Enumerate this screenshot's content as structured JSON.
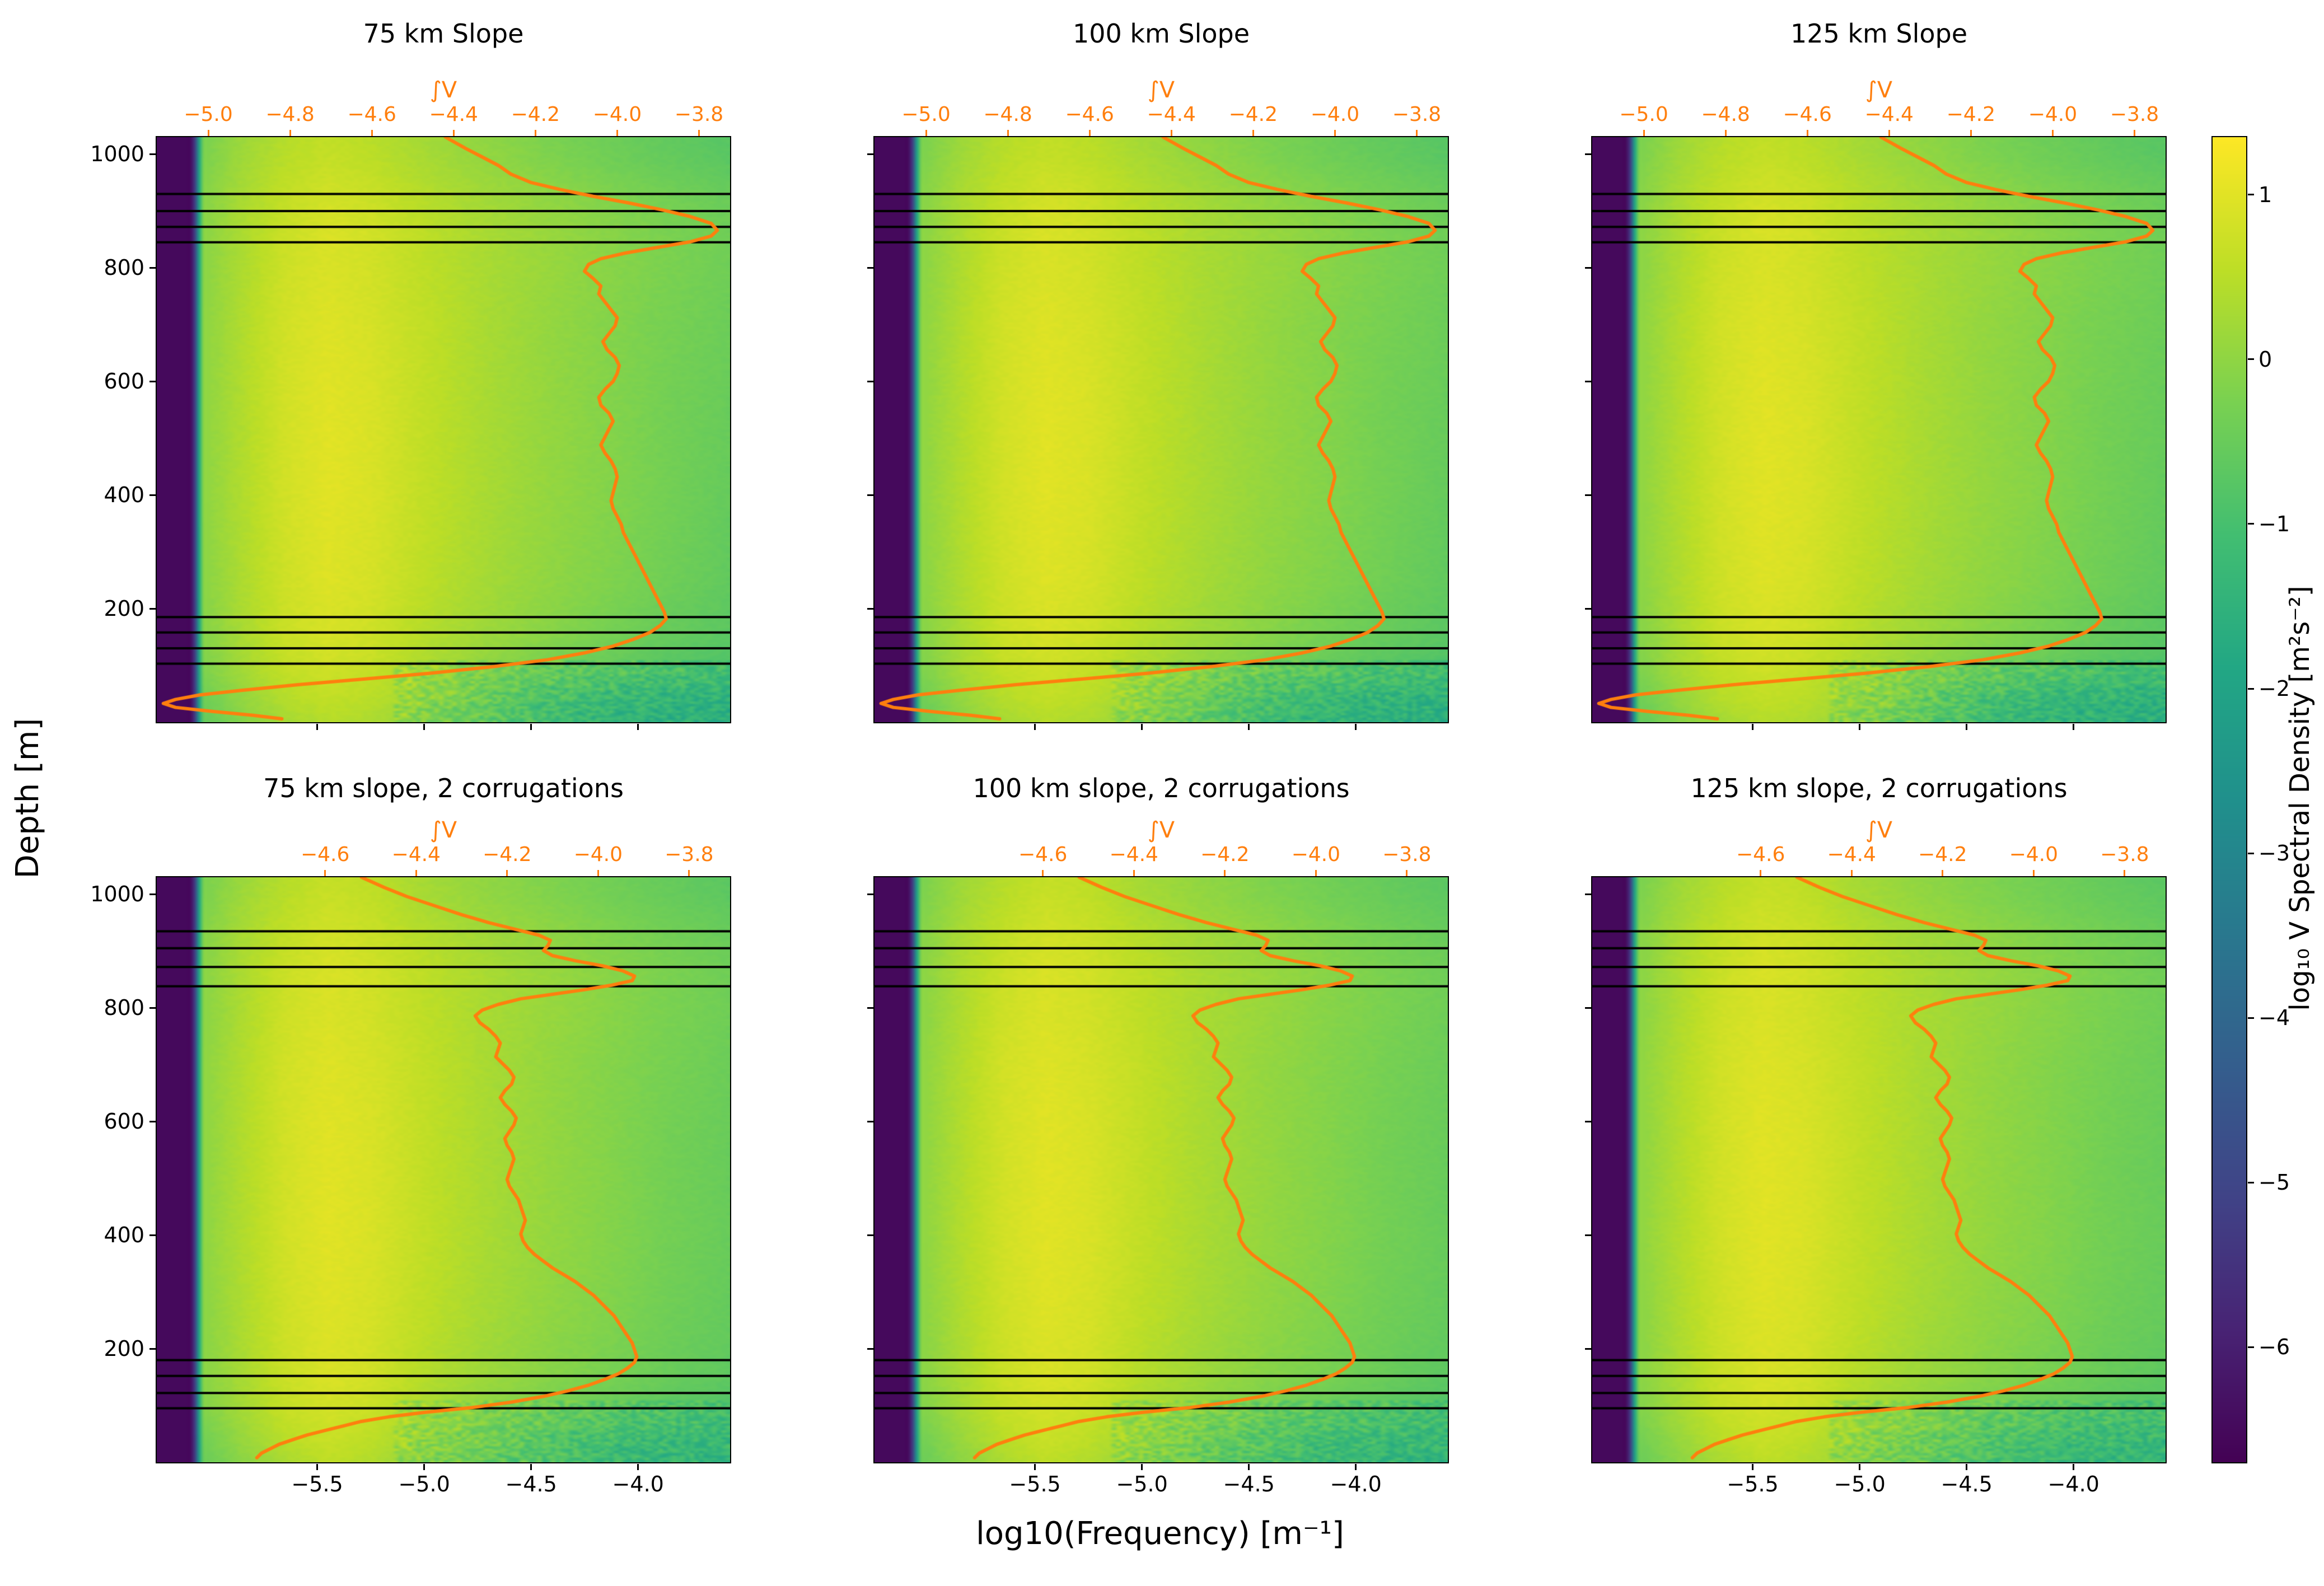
{
  "chart_data": {
    "type": "heatmap",
    "colors": {
      "curve": "#ff7f0e",
      "mooring_line": "#000000",
      "background": "#ffffff"
    },
    "x_axis": {
      "label": "log10(Frequency) [m⁻¹]",
      "range": [
        -6.25,
        -3.57
      ],
      "ticks": [
        -5.5,
        -5.0,
        -4.5,
        -4.0
      ]
    },
    "y_axis": {
      "label": "Depth [m]",
      "range": [
        0,
        1030
      ],
      "ticks": [
        200,
        400,
        600,
        800,
        1000
      ],
      "orientation": "depth increases upward"
    },
    "top_axis_label": "∫V",
    "colorbar": {
      "label": "log₁₀ V Spectral Density [m²s⁻²]",
      "ticks": [
        1,
        0,
        -1,
        -2,
        -3,
        -4,
        -5,
        -6
      ],
      "vmin": -6.7,
      "vmax": 1.35,
      "colormap": "viridis"
    },
    "panels": [
      {
        "title": "75 km Slope",
        "grid": "row1",
        "curve": "row1",
        "lines": "row1",
        "top_ticks": [
          -5.0,
          -4.8,
          -4.6,
          -4.4,
          -4.2,
          -4.0,
          -3.8
        ]
      },
      {
        "title": "100 km Slope",
        "grid": "row1",
        "curve": "row1",
        "lines": "row1",
        "top_ticks": [
          -5.0,
          -4.8,
          -4.6,
          -4.4,
          -4.2,
          -4.0,
          -3.8
        ]
      },
      {
        "title": "125 km Slope",
        "grid": "row1",
        "curve": "row1",
        "lines": "row1",
        "top_ticks": [
          -5.0,
          -4.8,
          -4.6,
          -4.4,
          -4.2,
          -4.0,
          -3.8
        ]
      },
      {
        "title": "75 km slope, 2 corrugations",
        "grid": "row2",
        "curve": "row2",
        "lines": "row2",
        "top_ticks": [
          -4.6,
          -4.4,
          -4.2,
          -4.0,
          -3.8
        ]
      },
      {
        "title": "100 km slope, 2 corrugations",
        "grid": "row2",
        "curve": "row2",
        "lines": "row2",
        "top_ticks": [
          -4.6,
          -4.4,
          -4.2,
          -4.0,
          -3.8
        ]
      },
      {
        "title": "125 km slope, 2 corrugations",
        "grid": "row2",
        "curve": "row2",
        "lines": "row2",
        "top_ticks": [
          -4.6,
          -4.4,
          -4.2,
          -4.0,
          -3.8
        ]
      }
    ],
    "shared": {
      "grid_x": [
        -6.25,
        -6.08,
        -6.04,
        -5.85,
        -5.65,
        -5.45,
        -5.25,
        -5.0,
        -4.7,
        -4.4,
        -4.1,
        -3.85,
        -3.57
      ],
      "grid_depth": [
        0,
        40,
        90,
        150,
        250,
        400,
        550,
        700,
        800,
        860,
        930,
        990,
        1030
      ],
      "values_row1": [
        [
          -6.5,
          -6.5,
          -0.6,
          -0.1,
          0.25,
          0.45,
          0.35,
          0.05,
          -0.45,
          -0.95,
          -1.25,
          -1.35,
          -1.45
        ],
        [
          -6.5,
          -6.5,
          -0.45,
          0.05,
          0.45,
          0.6,
          0.5,
          0.2,
          -0.3,
          -0.8,
          -1.1,
          -1.2,
          -1.3
        ],
        [
          -6.5,
          -6.5,
          -0.25,
          0.25,
          0.6,
          0.75,
          0.65,
          0.35,
          0.0,
          -0.35,
          -0.6,
          -0.8,
          -0.9
        ],
        [
          -6.5,
          -6.5,
          -0.15,
          0.3,
          0.7,
          0.85,
          0.75,
          0.45,
          0.15,
          -0.1,
          -0.35,
          -0.55,
          -0.7
        ],
        [
          -6.5,
          -6.5,
          -0.1,
          0.35,
          0.75,
          0.95,
          0.85,
          0.55,
          0.25,
          0.0,
          -0.2,
          -0.4,
          -0.6
        ],
        [
          -6.5,
          -6.5,
          -0.05,
          0.4,
          0.8,
          1.0,
          0.9,
          0.6,
          0.3,
          0.05,
          -0.15,
          -0.35,
          -0.55
        ],
        [
          -6.5,
          -6.5,
          -0.05,
          0.4,
          0.8,
          1.0,
          0.9,
          0.6,
          0.3,
          0.05,
          -0.15,
          -0.35,
          -0.5
        ],
        [
          -6.5,
          -6.5,
          -0.05,
          0.4,
          0.8,
          0.95,
          0.85,
          0.6,
          0.3,
          0.05,
          -0.15,
          -0.3,
          -0.45
        ],
        [
          -6.5,
          -6.5,
          -0.1,
          0.35,
          0.75,
          0.9,
          0.8,
          0.55,
          0.3,
          0.1,
          -0.1,
          -0.25,
          -0.4
        ],
        [
          -6.5,
          -6.5,
          -0.1,
          0.35,
          0.7,
          0.9,
          0.8,
          0.55,
          0.3,
          0.1,
          -0.1,
          -0.25,
          -0.4
        ],
        [
          -6.5,
          -6.5,
          -0.15,
          0.3,
          0.6,
          0.8,
          0.7,
          0.45,
          0.2,
          0.0,
          -0.2,
          -0.35,
          -0.5
        ],
        [
          -6.5,
          -6.5,
          -0.25,
          0.2,
          0.5,
          0.65,
          0.55,
          0.3,
          0.05,
          -0.2,
          -0.4,
          -0.55,
          -0.7
        ],
        [
          -6.5,
          -6.5,
          -0.3,
          0.15,
          0.45,
          0.6,
          0.5,
          0.25,
          0.0,
          -0.25,
          -0.45,
          -0.6,
          -0.75
        ]
      ],
      "values_row2": [
        [
          -6.5,
          -6.5,
          -0.5,
          -0.05,
          0.3,
          0.55,
          0.4,
          0.05,
          -0.35,
          -0.75,
          -1.05,
          -1.15,
          -1.25
        ],
        [
          -6.5,
          -6.5,
          -0.4,
          0.1,
          0.5,
          0.7,
          0.55,
          0.2,
          -0.2,
          -0.6,
          -0.9,
          -1.0,
          -1.1
        ],
        [
          -6.5,
          -6.5,
          -0.2,
          0.25,
          0.65,
          0.8,
          0.7,
          0.35,
          0.0,
          -0.3,
          -0.55,
          -0.7,
          -0.85
        ],
        [
          -6.5,
          -6.5,
          -0.1,
          0.3,
          0.7,
          0.9,
          0.8,
          0.45,
          0.15,
          -0.1,
          -0.3,
          -0.5,
          -0.65
        ],
        [
          -6.5,
          -6.5,
          -0.1,
          0.35,
          0.75,
          0.95,
          0.85,
          0.55,
          0.25,
          0.0,
          -0.2,
          -0.4,
          -0.55
        ],
        [
          -6.5,
          -6.5,
          -0.05,
          0.4,
          0.8,
          1.0,
          0.9,
          0.6,
          0.3,
          0.05,
          -0.15,
          -0.35,
          -0.5
        ],
        [
          -6.5,
          -6.5,
          -0.05,
          0.4,
          0.8,
          1.0,
          0.9,
          0.6,
          0.3,
          0.05,
          -0.15,
          -0.35,
          -0.5
        ],
        [
          -6.5,
          -6.5,
          -0.05,
          0.4,
          0.8,
          0.95,
          0.85,
          0.6,
          0.3,
          0.05,
          -0.15,
          -0.3,
          -0.45
        ],
        [
          -6.5,
          -6.5,
          -0.1,
          0.35,
          0.75,
          0.9,
          0.8,
          0.55,
          0.3,
          0.1,
          -0.1,
          -0.25,
          -0.4
        ],
        [
          -6.5,
          -6.5,
          -0.1,
          0.35,
          0.7,
          0.9,
          0.8,
          0.55,
          0.3,
          0.1,
          -0.1,
          -0.25,
          -0.4
        ],
        [
          -6.5,
          -6.5,
          -0.15,
          0.3,
          0.6,
          0.8,
          0.7,
          0.45,
          0.2,
          0.0,
          -0.2,
          -0.35,
          -0.5
        ],
        [
          -6.5,
          -6.5,
          -0.25,
          0.2,
          0.5,
          0.7,
          0.6,
          0.3,
          0.05,
          -0.15,
          -0.35,
          -0.5,
          -0.65
        ],
        [
          -6.5,
          -6.5,
          -0.3,
          0.15,
          0.45,
          0.65,
          0.55,
          0.25,
          0.0,
          -0.2,
          -0.4,
          -0.55,
          -0.7
        ]
      ],
      "curve_row1": {
        "range": [
          -5.126,
          -3.724
        ],
        "points": [
          [
            1030,
            -4.42
          ],
          [
            1010,
            -4.37
          ],
          [
            995,
            -4.33
          ],
          [
            980,
            -4.29
          ],
          [
            965,
            -4.26
          ],
          [
            950,
            -4.21
          ],
          [
            938,
            -4.14
          ],
          [
            926,
            -4.06
          ],
          [
            914,
            -3.97
          ],
          [
            902,
            -3.89
          ],
          [
            890,
            -3.82
          ],
          [
            878,
            -3.77
          ],
          [
            866,
            -3.755
          ],
          [
            856,
            -3.77
          ],
          [
            846,
            -3.82
          ],
          [
            836,
            -3.9
          ],
          [
            826,
            -3.98
          ],
          [
            816,
            -4.04
          ],
          [
            806,
            -4.07
          ],
          [
            794,
            -4.08
          ],
          [
            782,
            -4.06
          ],
          [
            768,
            -4.04
          ],
          [
            754,
            -4.045
          ],
          [
            740,
            -4.03
          ],
          [
            726,
            -4.015
          ],
          [
            712,
            -4.0
          ],
          [
            698,
            -4.005
          ],
          [
            684,
            -4.02
          ],
          [
            670,
            -4.035
          ],
          [
            656,
            -4.025
          ],
          [
            642,
            -4.005
          ],
          [
            628,
            -3.995
          ],
          [
            614,
            -4.0
          ],
          [
            600,
            -4.01
          ],
          [
            586,
            -4.03
          ],
          [
            572,
            -4.045
          ],
          [
            558,
            -4.04
          ],
          [
            544,
            -4.02
          ],
          [
            530,
            -4.01
          ],
          [
            516,
            -4.02
          ],
          [
            502,
            -4.03
          ],
          [
            488,
            -4.04
          ],
          [
            474,
            -4.03
          ],
          [
            460,
            -4.015
          ],
          [
            446,
            -4.005
          ],
          [
            432,
            -4.0
          ],
          [
            418,
            -4.005
          ],
          [
            404,
            -4.01
          ],
          [
            390,
            -4.015
          ],
          [
            376,
            -4.01
          ],
          [
            362,
            -4.0
          ],
          [
            348,
            -3.99
          ],
          [
            334,
            -3.985
          ],
          [
            320,
            -3.975
          ],
          [
            306,
            -3.965
          ],
          [
            292,
            -3.955
          ],
          [
            278,
            -3.945
          ],
          [
            264,
            -3.935
          ],
          [
            250,
            -3.925
          ],
          [
            236,
            -3.915
          ],
          [
            222,
            -3.905
          ],
          [
            208,
            -3.895
          ],
          [
            194,
            -3.885
          ],
          [
            182,
            -3.88
          ],
          [
            170,
            -3.895
          ],
          [
            158,
            -3.92
          ],
          [
            146,
            -3.96
          ],
          [
            134,
            -4.01
          ],
          [
            122,
            -4.08
          ],
          [
            110,
            -4.17
          ],
          [
            98,
            -4.3
          ],
          [
            86,
            -4.46
          ],
          [
            76,
            -4.62
          ],
          [
            66,
            -4.78
          ],
          [
            56,
            -4.92
          ],
          [
            48,
            -5.02
          ],
          [
            40,
            -5.08
          ],
          [
            33,
            -5.11
          ],
          [
            26,
            -5.08
          ],
          [
            19,
            -4.99
          ],
          [
            12,
            -4.89
          ],
          [
            6,
            -4.82
          ]
        ]
      },
      "curve_row2": {
        "range": [
          -4.97,
          -3.71
        ],
        "points": [
          [
            1030,
            -4.52
          ],
          [
            1012,
            -4.47
          ],
          [
            996,
            -4.42
          ],
          [
            980,
            -4.36
          ],
          [
            964,
            -4.3
          ],
          [
            950,
            -4.24
          ],
          [
            938,
            -4.18
          ],
          [
            928,
            -4.13
          ],
          [
            919,
            -4.105
          ],
          [
            910,
            -4.11
          ],
          [
            901,
            -4.12
          ],
          [
            892,
            -4.1
          ],
          [
            883,
            -4.05
          ],
          [
            874,
            -3.99
          ],
          [
            865,
            -3.945
          ],
          [
            856,
            -3.92
          ],
          [
            848,
            -3.925
          ],
          [
            840,
            -3.97
          ],
          [
            832,
            -4.03
          ],
          [
            824,
            -4.1
          ],
          [
            816,
            -4.17
          ],
          [
            806,
            -4.22
          ],
          [
            796,
            -4.255
          ],
          [
            786,
            -4.27
          ],
          [
            774,
            -4.26
          ],
          [
            762,
            -4.24
          ],
          [
            750,
            -4.225
          ],
          [
            738,
            -4.215
          ],
          [
            726,
            -4.22
          ],
          [
            714,
            -4.225
          ],
          [
            702,
            -4.21
          ],
          [
            690,
            -4.195
          ],
          [
            678,
            -4.185
          ],
          [
            666,
            -4.19
          ],
          [
            654,
            -4.205
          ],
          [
            642,
            -4.215
          ],
          [
            630,
            -4.205
          ],
          [
            618,
            -4.19
          ],
          [
            606,
            -4.18
          ],
          [
            594,
            -4.185
          ],
          [
            582,
            -4.195
          ],
          [
            570,
            -4.205
          ],
          [
            558,
            -4.2
          ],
          [
            546,
            -4.19
          ],
          [
            534,
            -4.185
          ],
          [
            522,
            -4.19
          ],
          [
            510,
            -4.195
          ],
          [
            498,
            -4.2
          ],
          [
            486,
            -4.195
          ],
          [
            474,
            -4.185
          ],
          [
            462,
            -4.175
          ],
          [
            450,
            -4.17
          ],
          [
            438,
            -4.165
          ],
          [
            426,
            -4.16
          ],
          [
            414,
            -4.165
          ],
          [
            402,
            -4.17
          ],
          [
            390,
            -4.165
          ],
          [
            378,
            -4.155
          ],
          [
            366,
            -4.14
          ],
          [
            354,
            -4.12
          ],
          [
            342,
            -4.1
          ],
          [
            330,
            -4.075
          ],
          [
            318,
            -4.05
          ],
          [
            306,
            -4.03
          ],
          [
            294,
            -4.01
          ],
          [
            282,
            -3.995
          ],
          [
            270,
            -3.98
          ],
          [
            258,
            -3.965
          ],
          [
            246,
            -3.955
          ],
          [
            234,
            -3.945
          ],
          [
            222,
            -3.935
          ],
          [
            210,
            -3.925
          ],
          [
            198,
            -3.92
          ],
          [
            186,
            -3.915
          ],
          [
            176,
            -3.92
          ],
          [
            166,
            -3.935
          ],
          [
            156,
            -3.955
          ],
          [
            146,
            -3.985
          ],
          [
            136,
            -4.02
          ],
          [
            126,
            -4.065
          ],
          [
            116,
            -4.12
          ],
          [
            106,
            -4.19
          ],
          [
            96,
            -4.28
          ],
          [
            88,
            -4.38
          ],
          [
            80,
            -4.46
          ],
          [
            72,
            -4.52
          ],
          [
            64,
            -4.56
          ],
          [
            56,
            -4.6
          ],
          [
            48,
            -4.64
          ],
          [
            40,
            -4.67
          ],
          [
            32,
            -4.7
          ],
          [
            24,
            -4.72
          ],
          [
            16,
            -4.74
          ],
          [
            8,
            -4.75
          ]
        ]
      },
      "lines_row1": [
        930,
        900,
        872,
        845,
        185,
        158,
        130,
        103
      ],
      "lines_row2": [
        935,
        905,
        872,
        838,
        180,
        152,
        122,
        95
      ]
    }
  }
}
